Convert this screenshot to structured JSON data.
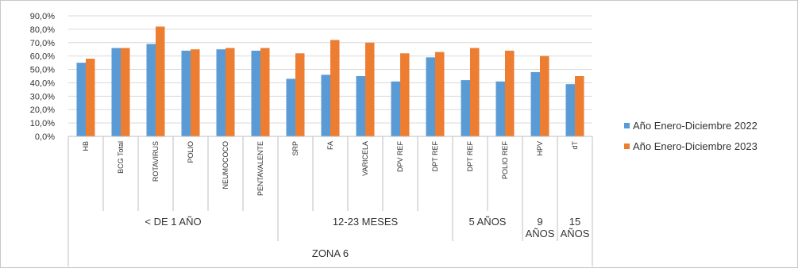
{
  "chart_data": {
    "type": "bar",
    "title": "",
    "ylim": [
      0,
      90
    ],
    "y_ticks": [
      "0,0%",
      "10,0%",
      "20,0%",
      "30,0%",
      "40,0%",
      "50,0%",
      "60,0%",
      "70,0%",
      "80,0%",
      "90,0%"
    ],
    "categories": [
      "HB",
      "BCG Total",
      "ROTAVIRUS",
      "POLIO",
      "NEUMOCOCO",
      "PENTAVALENTE",
      "SRP",
      "FA",
      "VARICELA",
      "DPV REF",
      "DPT REF",
      "DPT REF",
      "POLIO REF",
      "HPV",
      "dT"
    ],
    "groups": [
      {
        "label": "< DE 1 AÑO",
        "count": 6
      },
      {
        "label": "12-23 MESES",
        "count": 5
      },
      {
        "label": "5 AÑOS",
        "count": 2
      },
      {
        "label": "9 AÑOS",
        "count": 1
      },
      {
        "label": "15 AÑOS",
        "count": 1
      }
    ],
    "zone_label": "ZONA 6",
    "series": [
      {
        "name": "Año Enero-Diciembre 2022",
        "color": "#5b9bd5",
        "values": [
          55,
          66,
          69,
          64,
          65,
          64,
          43,
          46,
          45,
          41,
          59,
          42,
          41,
          48,
          39
        ]
      },
      {
        "name": "Año Enero-Diciembre 2023",
        "color": "#ed7d31",
        "values": [
          58,
          66,
          82,
          65,
          66,
          66,
          62,
          72,
          70,
          62,
          63,
          66,
          64,
          60,
          45
        ]
      }
    ],
    "grid": true,
    "legend_position": "right"
  }
}
